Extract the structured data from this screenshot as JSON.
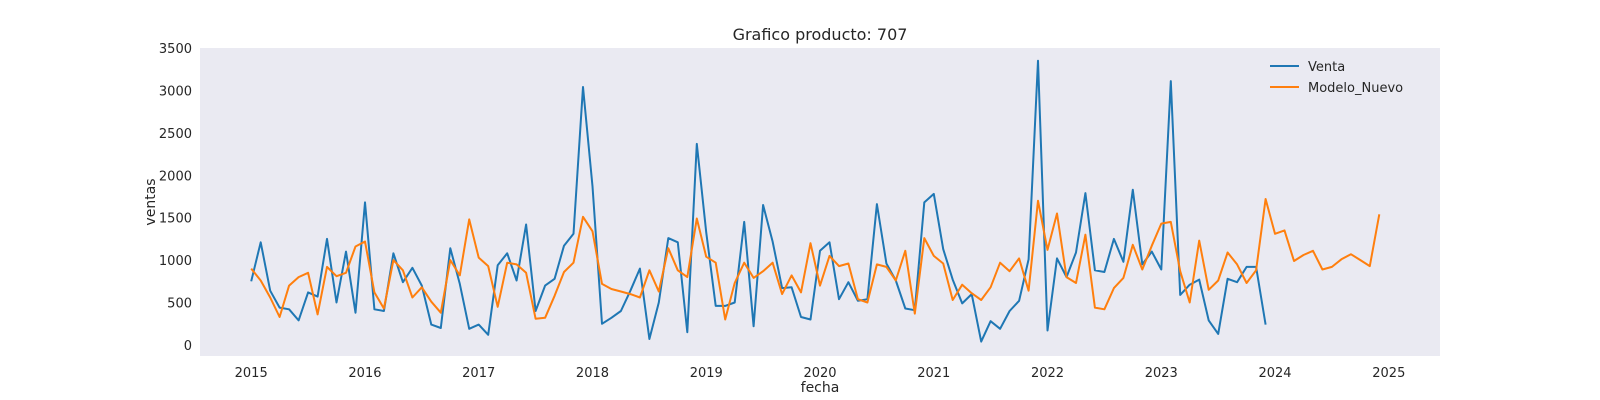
{
  "chart_data": {
    "type": "line",
    "title": "Grafico producto: 707",
    "xlabel": "fecha",
    "ylabel": "ventas",
    "xlim": [
      2014.55,
      2025.45
    ],
    "ylim": [
      -130,
      3500
    ],
    "xticks": [
      2015,
      2016,
      2017,
      2018,
      2019,
      2020,
      2021,
      2022,
      2023,
      2024,
      2025
    ],
    "yticks": [
      0,
      500,
      1000,
      1500,
      2000,
      2500,
      3000,
      3500
    ],
    "grid": false,
    "legend_position": "top-right",
    "background": "#eaeaf2",
    "series": [
      {
        "name": "Venta",
        "color": "#1f77b4",
        "start": "2015-01",
        "frequency": "monthly",
        "values": [
          750,
          1210,
          640,
          440,
          420,
          290,
          620,
          570,
          1250,
          500,
          1100,
          380,
          1680,
          420,
          400,
          1080,
          740,
          910,
          700,
          240,
          200,
          1140,
          720,
          190,
          240,
          120,
          940,
          1080,
          760,
          1420,
          400,
          700,
          780,
          1170,
          1310,
          3040,
          1870,
          250,
          320,
          400,
          640,
          900,
          70,
          500,
          1260,
          1210,
          150,
          2370,
          1330,
          460,
          460,
          500,
          1450,
          220,
          1650,
          1220,
          670,
          680,
          330,
          300,
          1110,
          1210,
          540,
          740,
          520,
          540,
          1660,
          960,
          760,
          430,
          410,
          1680,
          1780,
          1130,
          770,
          490,
          600,
          40,
          280,
          190,
          400,
          520,
          1010,
          3350,
          170,
          1020,
          800,
          1090,
          1790,
          880,
          860,
          1250,
          980,
          1830,
          950,
          1100,
          890,
          3110,
          590,
          710,
          770,
          290,
          130,
          780,
          740,
          920,
          920,
          240
        ]
      },
      {
        "name": "Modelo_Nuevo",
        "color": "#ff7f0e",
        "start": "2015-01",
        "frequency": "monthly",
        "values": [
          900,
          760,
          560,
          330,
          700,
          800,
          850,
          360,
          920,
          810,
          850,
          1160,
          1220,
          620,
          430,
          1000,
          880,
          560,
          680,
          510,
          380,
          1000,
          820,
          1480,
          1030,
          930,
          450,
          970,
          950,
          850,
          310,
          320,
          580,
          860,
          970,
          1510,
          1340,
          720,
          660,
          630,
          600,
          560,
          880,
          630,
          1140,
          880,
          800,
          1490,
          1040,
          970,
          300,
          730,
          970,
          790,
          870,
          970,
          600,
          820,
          620,
          1200,
          700,
          1050,
          930,
          960,
          540,
          500,
          950,
          920,
          760,
          1110,
          370,
          1260,
          1050,
          960,
          530,
          710,
          610,
          530,
          680,
          970,
          870,
          1020,
          640,
          1700,
          1120,
          1550,
          800,
          730,
          1300,
          440,
          420,
          670,
          790,
          1180,
          890,
          1170,
          1430,
          1450,
          870,
          500,
          1230,
          650,
          760,
          1090,
          950,
          730,
          880,
          1720,
          1310,
          1350,
          990,
          1060,
          1110,
          890,
          920,
          1010,
          1070,
          1000,
          930,
          1540
        ]
      }
    ]
  }
}
